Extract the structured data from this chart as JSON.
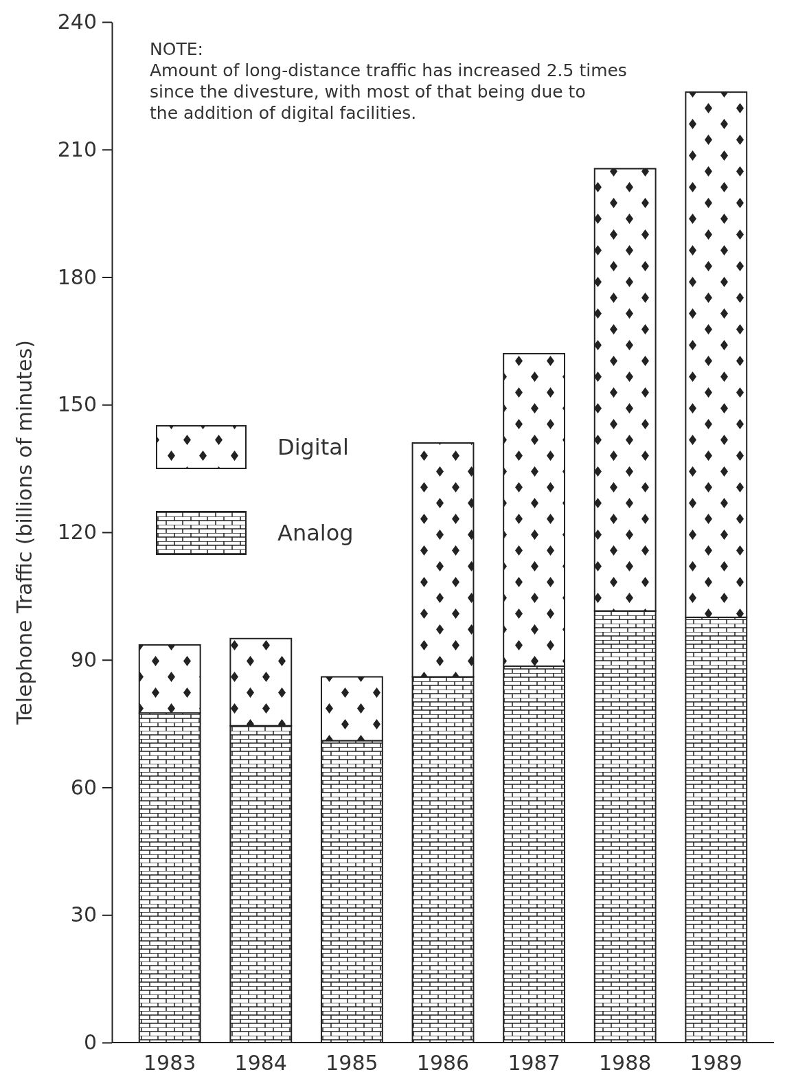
{
  "chart_data": {
    "type": "bar",
    "stacked": true,
    "ylabel": "Telephone Traffic (billions of minutes)",
    "categories": [
      "1983",
      "1984",
      "1985",
      "1986",
      "1987",
      "1988",
      "1989"
    ],
    "series": [
      {
        "name": "Analog",
        "color": "#222222",
        "values": [
          77.5,
          74.5,
          71,
          86,
          88.5,
          101.5,
          100
        ]
      },
      {
        "name": "Digital",
        "color": "#222222",
        "values": [
          16,
          20.5,
          15,
          55,
          73.5,
          104,
          123.5
        ]
      }
    ],
    "ylim": [
      0,
      240
    ],
    "yticks": [
      0,
      30,
      60,
      90,
      120,
      150,
      180,
      210,
      240
    ],
    "grid": false,
    "legend": "left",
    "annotations": [
      "NOTE:\nAmount of long-distance traffic has increased 2.5 times\nsince the divesture, with most of that being due to\nthe addition of digital facilities."
    ]
  }
}
